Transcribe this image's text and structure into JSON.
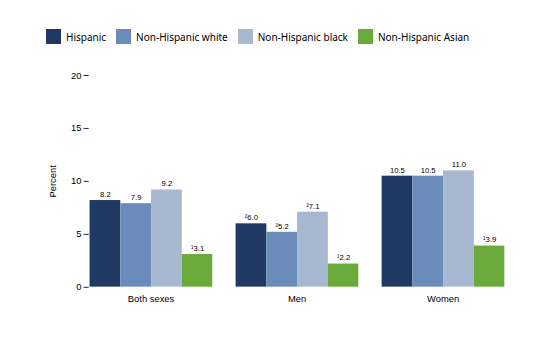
{
  "chart_data": {
    "type": "bar",
    "categories": [
      "Both sexes",
      "Men",
      "Women"
    ],
    "series": [
      {
        "name": "Hispanic",
        "color": "#1f3864",
        "values": [
          8.2,
          6.0,
          10.5
        ],
        "value_labels": [
          "8.2",
          "²6.0",
          "10.5"
        ]
      },
      {
        "name": "Non-Hispanic white",
        "color": "#6b8cba",
        "values": [
          7.9,
          5.2,
          10.5
        ],
        "value_labels": [
          "7.9",
          "²5.2",
          "10.5"
        ]
      },
      {
        "name": "Non-Hispanic black",
        "color": "#a8b8d0",
        "values": [
          9.2,
          7.1,
          11.0
        ],
        "value_labels": [
          "9.2",
          "²7.1",
          "11.0"
        ]
      },
      {
        "name": "Non-Hispanic Asian",
        "color": "#6aaa3a",
        "values": [
          3.1,
          2.2,
          3.9
        ],
        "value_labels": [
          "¹3.1",
          "¹2.2",
          "¹3.9"
        ]
      }
    ],
    "ylabel": "Percent",
    "ylim": [
      0,
      20
    ],
    "yticks": [
      0,
      5,
      10,
      15,
      20
    ],
    "grid": false,
    "legend": "top",
    "data_labels": true
  }
}
